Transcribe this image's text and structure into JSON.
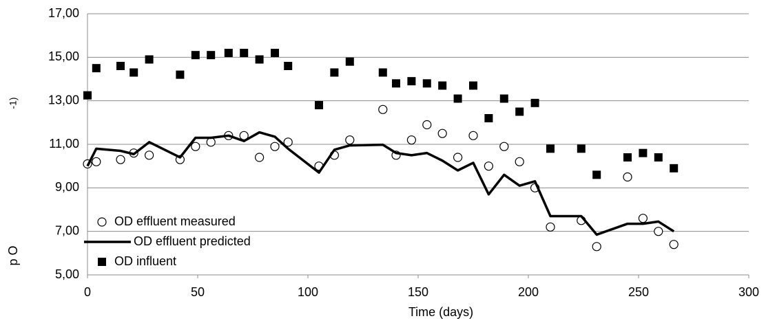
{
  "chart_data": {
    "type": "scatter",
    "xlabel": "Time (days)",
    "ylabel": "p O",
    "ylabel_fragment": "-1)",
    "x": [
      0,
      4,
      15,
      21,
      28,
      42,
      49,
      56,
      64,
      71,
      78,
      85,
      91,
      105,
      112,
      119,
      134,
      140,
      147,
      154,
      161,
      168,
      175,
      182,
      189,
      196,
      203,
      210,
      224,
      231,
      245,
      252,
      259,
      266
    ],
    "series": [
      {
        "name": "OD effluent measured",
        "color": "#000000",
        "marker": "open-circle",
        "values": [
          10.1,
          10.2,
          10.3,
          10.6,
          10.5,
          10.3,
          10.9,
          11.1,
          11.4,
          11.4,
          10.4,
          10.9,
          11.1,
          10.0,
          10.5,
          11.2,
          12.6,
          10.5,
          11.2,
          11.9,
          11.5,
          10.4,
          11.4,
          10.0,
          10.9,
          10.2,
          9.0,
          7.2,
          7.5,
          6.3,
          9.5,
          7.6,
          7.0,
          6.4
        ]
      },
      {
        "name": "OD effluent predicted",
        "color": "#000000",
        "marker": "line",
        "values": [
          10.0,
          10.8,
          10.7,
          10.55,
          11.1,
          10.4,
          11.3,
          11.3,
          11.4,
          11.15,
          11.55,
          11.35,
          10.8,
          9.7,
          10.75,
          10.95,
          10.98,
          10.6,
          10.5,
          10.6,
          10.25,
          9.8,
          10.15,
          8.7,
          9.6,
          9.1,
          9.3,
          7.7,
          7.7,
          6.85,
          7.35,
          7.35,
          7.45,
          7.0
        ]
      },
      {
        "name": "OD influent",
        "color": "#000000",
        "marker": "square",
        "values": [
          13.25,
          14.5,
          14.6,
          14.3,
          14.9,
          14.2,
          15.1,
          15.1,
          15.2,
          15.2,
          14.9,
          15.2,
          14.6,
          12.8,
          14.3,
          14.8,
          14.3,
          13.8,
          13.9,
          13.8,
          13.7,
          13.1,
          13.7,
          12.2,
          13.1,
          12.5,
          12.9,
          10.8,
          10.8,
          9.6,
          10.4,
          10.6,
          10.4,
          9.9
        ]
      }
    ],
    "xlim": [
      0,
      300
    ],
    "xticks": [
      0,
      50,
      100,
      150,
      200,
      250,
      300
    ],
    "ylim": [
      5,
      17
    ],
    "yticks": [
      {
        "value": 5,
        "label": "5,00"
      },
      {
        "value": 7,
        "label": "7,00"
      },
      {
        "value": 9,
        "label": "9,00"
      },
      {
        "value": 11,
        "label": "11,00"
      },
      {
        "value": 13,
        "label": "13,00"
      },
      {
        "value": 15,
        "label": "15,00"
      },
      {
        "value": 17,
        "label": "17,00"
      }
    ],
    "grid": true,
    "legend": "lower-left"
  }
}
